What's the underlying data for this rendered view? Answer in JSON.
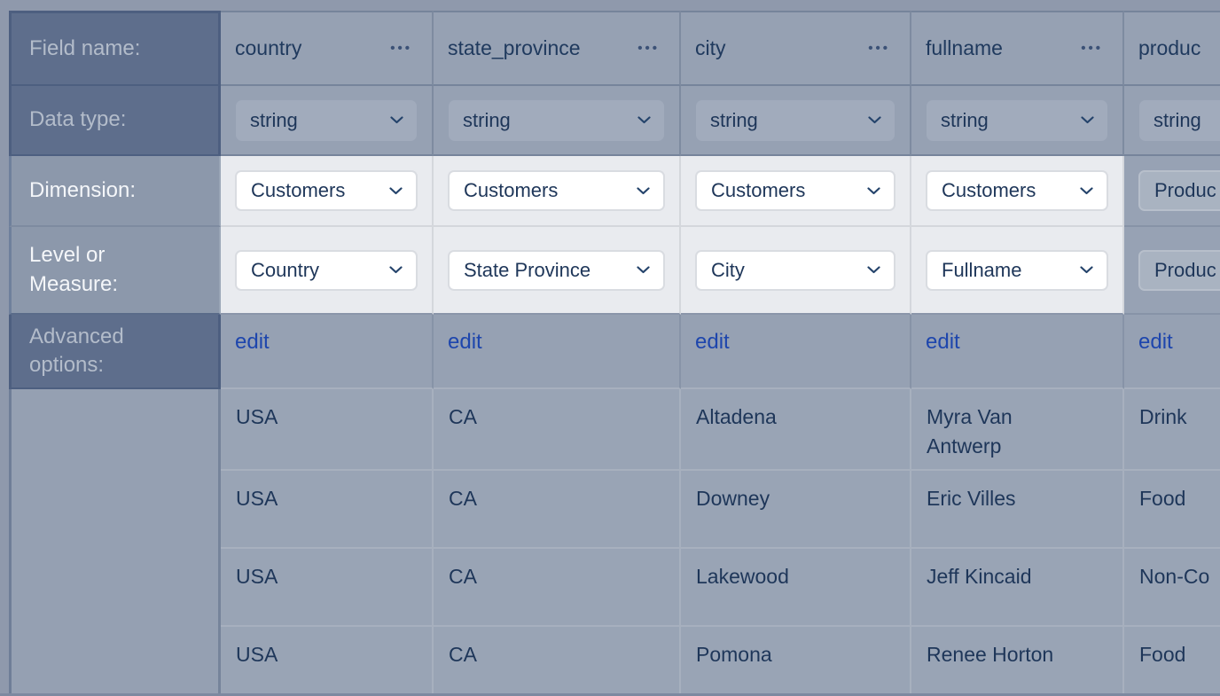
{
  "table": {
    "row_labels": {
      "field_name": "Field name:",
      "data_type": "Data type:",
      "dimension": "Dimension:",
      "level_or_measure": "Level or Measure:",
      "advanced_options": "Advanced options:"
    },
    "edit_link": "edit",
    "columns": [
      {
        "field_name": "country",
        "data_type": "string",
        "dimension": "Customers",
        "level_or_measure": "Country",
        "highlighted": true,
        "clipped": false
      },
      {
        "field_name": "state_province",
        "data_type": "string",
        "dimension": "Customers",
        "level_or_measure": "State Province",
        "highlighted": true,
        "clipped": false
      },
      {
        "field_name": "city",
        "data_type": "string",
        "dimension": "Customers",
        "level_or_measure": "City",
        "highlighted": true,
        "clipped": false
      },
      {
        "field_name": "fullname",
        "data_type": "string",
        "dimension": "Customers",
        "level_or_measure": "Fullname",
        "highlighted": true,
        "clipped": false
      },
      {
        "field_name": "produc",
        "data_type": "string",
        "dimension": "Produc",
        "level_or_measure": "Produc",
        "highlighted": false,
        "clipped": true
      }
    ],
    "preview_rows": [
      [
        "USA",
        "CA",
        "Altadena",
        "Myra Van Antwerp",
        "Drink"
      ],
      [
        "USA",
        "CA",
        "Downey",
        "Eric Villes",
        "Food"
      ],
      [
        "USA",
        "CA",
        "Lakewood",
        "Jeff Kincaid",
        "Non-Co"
      ],
      [
        "USA",
        "CA",
        "Pomona",
        "Renee Horton",
        "Food"
      ]
    ]
  },
  "icons": {
    "more_options_glyph": "•••"
  },
  "colors": {
    "dim_overlay_cell": "#97A2B4",
    "dim_label_cell": "#5E6E8C",
    "spotlight_cell": "#E9EBEF",
    "spotlight_label_cell": "#8C98AB",
    "navy_text": "#1E3659",
    "edit_link_blue": "#1E46AD",
    "page_backdrop": "#8F99AC"
  }
}
